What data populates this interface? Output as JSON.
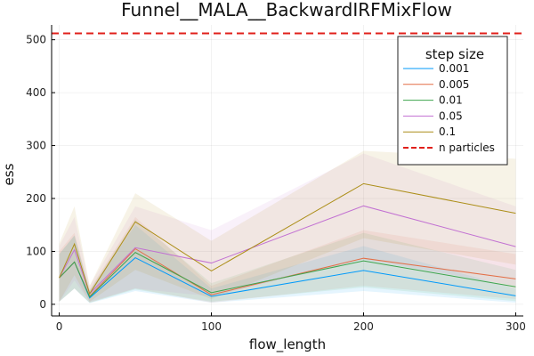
{
  "chart_data": {
    "type": "line",
    "title": "Funnel__MALA__BackwardIRFMixFlow",
    "xlabel": "flow_length",
    "ylabel": "ess",
    "xlim": [
      -5,
      305
    ],
    "ylim": [
      -22,
      528
    ],
    "xticks": [
      0,
      100,
      200,
      300
    ],
    "yticks": [
      0,
      100,
      200,
      300,
      400,
      500
    ],
    "grid": true,
    "legend_title": "step size",
    "legend_placement": "top-right",
    "x": [
      0,
      10,
      20,
      50,
      100,
      200,
      300
    ],
    "series": [
      {
        "name": "0.001",
        "color": "#009AFA",
        "values": [
          50,
          80,
          12,
          88,
          15,
          64,
          16
        ],
        "lower": [
          5,
          30,
          2,
          25,
          3,
          25,
          3
        ],
        "upper": [
          95,
          130,
          25,
          150,
          30,
          110,
          30
        ]
      },
      {
        "name": "0.005",
        "color": "#E36F47",
        "values": [
          50,
          80,
          15,
          105,
          18,
          87,
          48
        ],
        "lower": [
          5,
          30,
          3,
          30,
          3,
          35,
          10
        ],
        "upper": [
          100,
          135,
          28,
          165,
          35,
          140,
          95
        ]
      },
      {
        "name": "0.01",
        "color": "#3EA44E",
        "values": [
          50,
          80,
          14,
          98,
          22,
          82,
          33
        ],
        "lower": [
          5,
          30,
          3,
          28,
          5,
          32,
          6
        ],
        "upper": [
          95,
          130,
          26,
          160,
          40,
          135,
          65
        ]
      },
      {
        "name": "0.05",
        "color": "#C271D2",
        "values": [
          50,
          103,
          20,
          107,
          78,
          186,
          109
        ],
        "lower": [
          5,
          45,
          5,
          30,
          15,
          85,
          35
        ],
        "upper": [
          110,
          165,
          35,
          185,
          140,
          285,
          185
        ]
      },
      {
        "name": "0.1",
        "color": "#AC8E18",
        "values": [
          50,
          114,
          20,
          156,
          63,
          228,
          172
        ],
        "lower": [
          5,
          55,
          5,
          65,
          10,
          125,
          75
        ],
        "upper": [
          115,
          185,
          35,
          210,
          120,
          290,
          275
        ]
      }
    ],
    "reference_line": {
      "name": "n particles",
      "value": 512,
      "color": "#E0201B"
    }
  }
}
